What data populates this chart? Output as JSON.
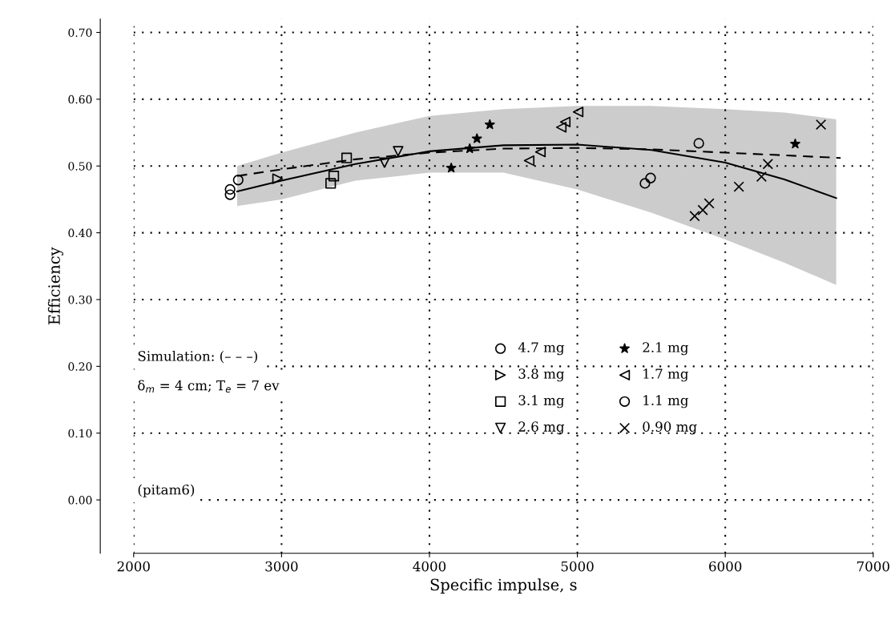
{
  "chart_data": {
    "type": "scatter",
    "xlabel": "Specific impulse, s",
    "ylabel": "Efficiency",
    "xlim": [
      2000,
      7000
    ],
    "xticks": [
      2000,
      3000,
      4000,
      5000,
      6000,
      7000
    ],
    "ylim": [
      -0.08,
      0.72
    ],
    "yticks": [
      {
        "value": 0,
        "label": "0.00"
      },
      {
        "value": 0.1,
        "label": "0.10"
      },
      {
        "value": 0.2,
        "label": "0.20"
      },
      {
        "value": 0.3,
        "label": "0.30"
      },
      {
        "value": 0.4,
        "label": "0.40"
      },
      {
        "value": 0.5,
        "label": "0.50"
      },
      {
        "value": 0.6,
        "label": "0.60"
      },
      {
        "value": 0.7,
        "label": "0.70"
      }
    ],
    "grid": true,
    "legend": "bottom",
    "annotations": [
      "Simulation: (– – –)",
      "δ$_{m}$ = 4 cm; T$_{e}$ = 7 ev",
      "(pitam6)"
    ],
    "series": [
      {
        "type": "line",
        "color": "#000000",
        "line_style": "solid",
        "marker": "none",
        "x": [
          2700,
          3000,
          3500,
          4000,
          4500,
          5000,
          5500,
          6000,
          6400,
          6750
        ],
        "values": [
          0.462,
          0.478,
          0.503,
          0.522,
          0.531,
          0.532,
          0.524,
          0.505,
          0.48,
          0.452
        ],
        "lower": [
          0.44,
          0.45,
          0.478,
          0.49,
          0.49,
          0.465,
          0.43,
          0.39,
          0.355,
          0.322
        ],
        "upper": [
          0.5,
          0.52,
          0.55,
          0.575,
          0.585,
          0.59,
          0.59,
          0.585,
          0.58,
          0.57
        ]
      },
      {
        "type": "line",
        "color": "#000000",
        "line_style": "dashed",
        "marker": "none",
        "x": [
          2700,
          3000,
          3500,
          4000,
          4500,
          5000,
          5500,
          6000,
          6400,
          6780
        ],
        "values": [
          0.485,
          0.495,
          0.51,
          0.52,
          0.526,
          0.527,
          0.525,
          0.52,
          0.516,
          0.512
        ]
      },
      {
        "name": "4.7 mg",
        "marker": "circle",
        "color": "#000000",
        "x": [
          2652,
          2652,
          2707
        ],
        "values": [
          0.465,
          0.457,
          0.479
        ]
      },
      {
        "name": "3.8 mg",
        "marker": "triangle_right",
        "color": "#000000",
        "x": [
          2973
        ],
        "values": [
          0.481
        ]
      },
      {
        "name": "3.1 mg",
        "marker": "square",
        "color": "#000000",
        "x": [
          3353,
          3332,
          3440
        ],
        "values": [
          0.485,
          0.474,
          0.512
        ]
      },
      {
        "name": "2.6 mg",
        "marker": "triangle_down",
        "color": "#000000",
        "x": [
          3696,
          3788
        ],
        "values": [
          0.505,
          0.522
        ]
      },
      {
        "name": "2.1 mg",
        "marker": "star",
        "color": "#000000",
        "x": [
          4408,
          4321,
          4272,
          4147,
          6473
        ],
        "values": [
          0.562,
          0.541,
          0.526,
          0.497,
          0.533
        ]
      },
      {
        "name": "1.7 mg",
        "marker": "triangle_left",
        "color": "#000000",
        "x": [
          4674,
          4750,
          4891,
          4918,
          5005
        ],
        "values": [
          0.508,
          0.521,
          0.558,
          0.566,
          0.581
        ]
      },
      {
        "name": "1.1 mg",
        "marker": "circle",
        "color": "#000000",
        "x": [
          5821,
          5457,
          5495
        ],
        "values": [
          0.534,
          0.474,
          0.482
        ]
      },
      {
        "name": "0.90 mg",
        "marker": "cross",
        "color": "#000000",
        "x": [
          5793,
          5848,
          5891,
          6092,
          6245,
          6288,
          6647
        ],
        "values": [
          0.425,
          0.434,
          0.444,
          0.469,
          0.484,
          0.503,
          0.562
        ]
      }
    ]
  }
}
